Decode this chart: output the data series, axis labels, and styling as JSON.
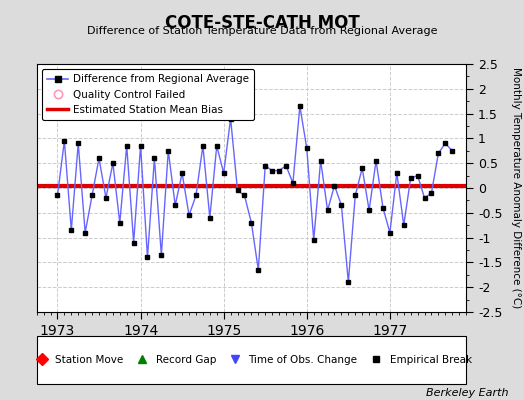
{
  "title": "COTE-STE-CATH MOT",
  "subtitle": "Difference of Station Temperature Data from Regional Average",
  "ylabel": "Monthly Temperature Anomaly Difference (°C)",
  "attribution": "Berkeley Earth",
  "bias_value": 0.05,
  "ylim": [
    -2.5,
    2.5
  ],
  "xlim": [
    1972.75,
    1977.92
  ],
  "xticks": [
    1973,
    1974,
    1975,
    1976,
    1977
  ],
  "yticks": [
    -2.5,
    -2,
    -1.5,
    -1,
    -0.5,
    0,
    0.5,
    1,
    1.5,
    2,
    2.5
  ],
  "fig_bg_color": "#dcdcdc",
  "plot_bg_color": "#ffffff",
  "line_color": "#6666ff",
  "marker_color": "#000000",
  "bias_color": "#dd0000",
  "months": [
    1973.0,
    1973.0833,
    1973.1667,
    1973.25,
    1973.3333,
    1973.4167,
    1973.5,
    1973.5833,
    1973.6667,
    1973.75,
    1973.8333,
    1973.9167,
    1974.0,
    1974.0833,
    1974.1667,
    1974.25,
    1974.3333,
    1974.4167,
    1974.5,
    1974.5833,
    1974.6667,
    1974.75,
    1974.8333,
    1974.9167,
    1975.0,
    1975.0833,
    1975.1667,
    1975.25,
    1975.3333,
    1975.4167,
    1975.5,
    1975.5833,
    1975.6667,
    1975.75,
    1975.8333,
    1975.9167,
    1976.0,
    1976.0833,
    1976.1667,
    1976.25,
    1976.3333,
    1976.4167,
    1976.5,
    1976.5833,
    1976.6667,
    1976.75,
    1976.8333,
    1976.9167,
    1977.0,
    1977.0833,
    1977.1667,
    1977.25,
    1977.3333,
    1977.4167,
    1977.5,
    1977.5833,
    1977.6667,
    1977.75
  ],
  "values": [
    -0.15,
    0.95,
    -0.85,
    0.9,
    -0.9,
    -0.15,
    0.6,
    -0.2,
    0.5,
    -0.7,
    0.85,
    -1.1,
    0.85,
    -1.4,
    0.6,
    -1.35,
    0.75,
    -0.35,
    0.3,
    -0.55,
    -0.15,
    0.85,
    -0.6,
    0.85,
    0.3,
    1.4,
    -0.05,
    -0.15,
    -0.7,
    -1.65,
    0.45,
    0.35,
    0.35,
    0.45,
    0.1,
    1.65,
    0.8,
    -1.05,
    0.55,
    -0.45,
    0.05,
    -0.35,
    -1.9,
    -0.15,
    0.4,
    -0.45,
    0.55,
    -0.4,
    -0.9,
    0.3,
    -0.75,
    0.2,
    0.25,
    -0.2,
    -0.1,
    0.7,
    0.9,
    0.75
  ]
}
